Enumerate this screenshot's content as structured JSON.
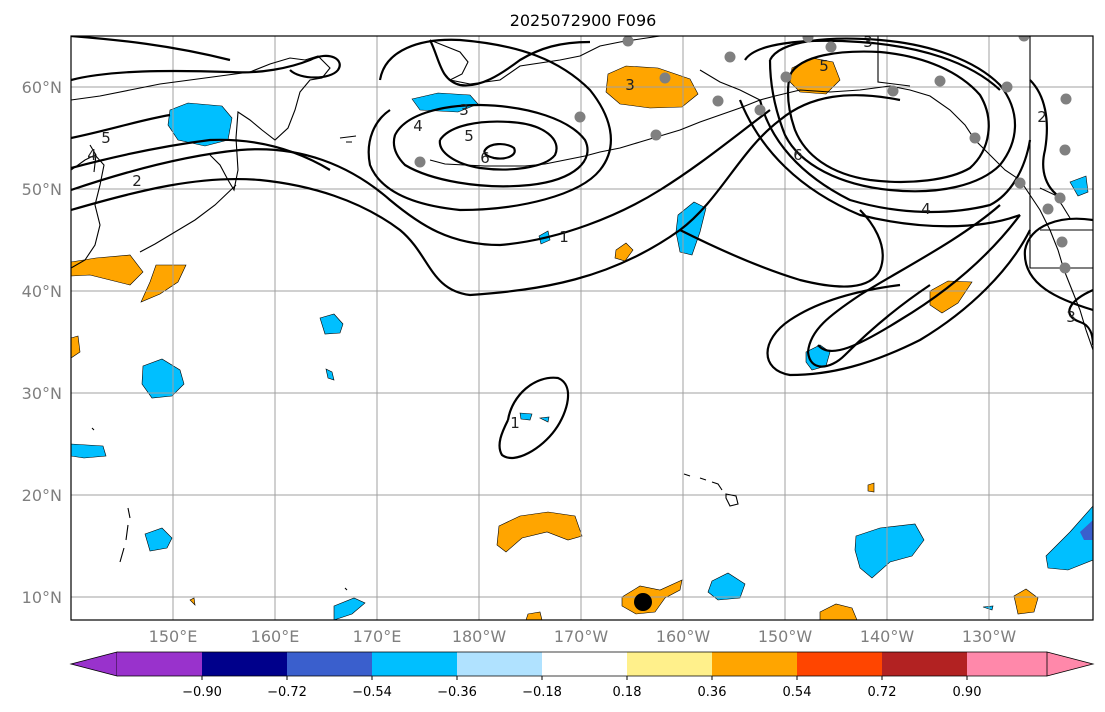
{
  "figure": {
    "title": "2025072900 F096"
  },
  "axes": {
    "lat_labels": [
      "60°N",
      "50°N",
      "40°N",
      "30°N",
      "20°N",
      "10°N"
    ],
    "lon_labels": [
      "150°E",
      "160°E",
      "170°E",
      "180°W",
      "170°W",
      "160°W",
      "150°W",
      "140°W",
      "130°W"
    ]
  },
  "contour_labels": [
    "5",
    "4",
    "2",
    "4",
    "3",
    "5",
    "6",
    "1",
    "1",
    "3",
    "6",
    "4",
    "2",
    "3",
    "5",
    "3"
  ],
  "colorbar": {
    "tick_labels": [
      "−0.90",
      "−0.72",
      "−0.54",
      "−0.36",
      "−0.18",
      "0.18",
      "0.36",
      "0.54",
      "0.72",
      "0.90"
    ],
    "colors": [
      "#9932cc",
      "#00008b",
      "#3a5fcd",
      "#00bfff",
      "#b0e2ff",
      "#ffffff",
      "#fff08b",
      "#ffa500",
      "#ff4500",
      "#b22222",
      "#ff88aa",
      "#ff88aa"
    ]
  },
  "chart_data": {
    "type": "map",
    "title": "2025072900 F096",
    "lat_range": [
      8,
      65
    ],
    "lon_range_east": [
      140,
      241
    ],
    "lat_ticks": [
      60,
      50,
      40,
      30,
      20,
      10
    ],
    "lon_ticks_east": [
      150,
      160,
      170,
      180,
      190,
      200,
      210,
      220,
      230
    ],
    "colorbar_levels": [
      -0.9,
      -0.72,
      -0.54,
      -0.36,
      -0.18,
      0.18,
      0.36,
      0.54,
      0.72,
      0.9
    ],
    "contour_levels_shown": [
      1,
      2,
      3,
      4,
      5,
      6
    ]
  }
}
